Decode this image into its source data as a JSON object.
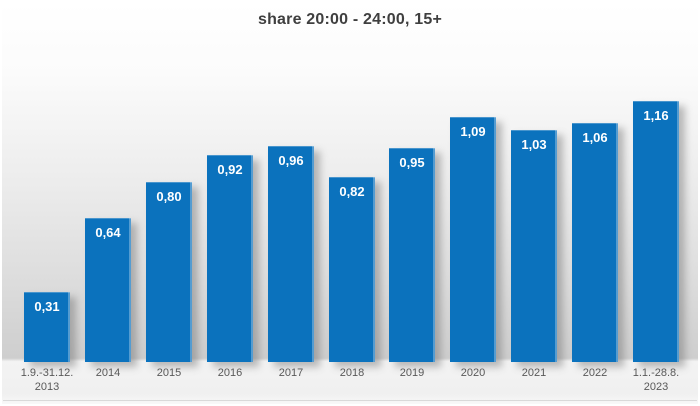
{
  "title": "share 20:00 - 24:00, 15+",
  "chart_data": {
    "type": "bar",
    "title": "share 20:00 - 24:00, 15+",
    "categories": [
      "1.9.-31.12.|2013",
      "2014",
      "2015",
      "2016",
      "2017",
      "2018",
      "2019",
      "2020",
      "2021",
      "2022",
      "1.1.-28.8.|2023"
    ],
    "values": [
      0.31,
      0.64,
      0.8,
      0.92,
      0.96,
      0.82,
      0.95,
      1.09,
      1.03,
      1.06,
      1.16
    ],
    "value_labels": [
      "0,31",
      "0,64",
      "0,80",
      "0,92",
      "0,96",
      "0,82",
      "0,95",
      "1,09",
      "1,03",
      "1,06",
      "1,16"
    ],
    "xlabel": "",
    "ylabel": "",
    "ylim": [
      0,
      1.3
    ],
    "grid": false,
    "legend": "none",
    "decimal_separator": ","
  },
  "style": {
    "bar_color": "#0b72bd",
    "bar_edge_highlight": "#5f9fd4",
    "value_label_color": "#ffffff",
    "title_color": "#3f3f3f",
    "axis_label_color": "#595959",
    "background_top": "#ffffff",
    "background_bottom": "#cecece",
    "axis_strip_color": "#f3f3f3",
    "bottom_rule_color": "#d9d9d9"
  }
}
